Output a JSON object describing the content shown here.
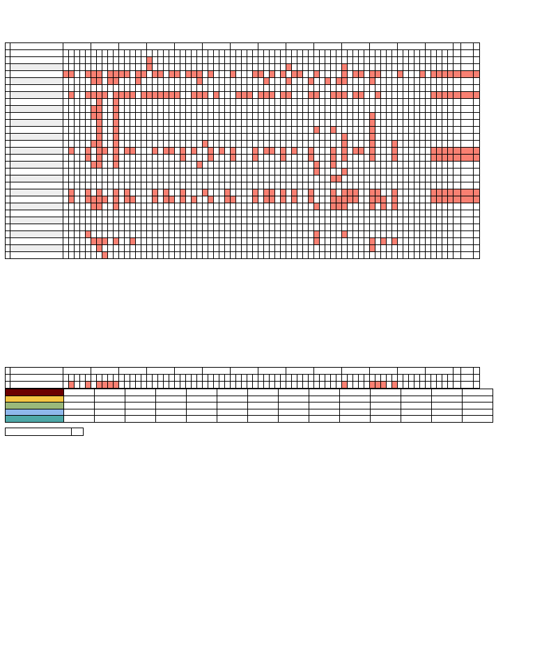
{
  "colors": {
    "mark": "#f98072",
    "row_shade": "#eeeeee",
    "legend": [
      "#6b0000",
      "#f5c542",
      "#9ab87a",
      "#8fb8ec",
      "#4ea8a8"
    ]
  },
  "main_table": {
    "columns": 69,
    "group_spans": [
      5,
      5,
      5,
      5,
      5,
      5,
      5,
      5,
      5,
      5,
      5,
      5,
      5,
      5
    ],
    "extra_columns": 3,
    "rows": [
      {
        "shade": false,
        "marks": [
          15
        ]
      },
      {
        "shade": true,
        "marks": [
          15,
          40,
          50
        ]
      },
      {
        "shade": false,
        "marks": [
          0,
          1,
          4,
          5,
          6,
          8,
          9,
          10,
          11,
          13,
          14,
          16,
          17,
          19,
          20,
          22,
          23,
          24,
          26,
          30,
          34,
          35,
          37,
          39,
          41,
          42,
          45,
          50,
          52,
          53,
          55,
          56,
          60,
          64,
          66,
          67,
          68,
          69,
          70
        ]
      },
      {
        "shade": true,
        "marks": [
          5,
          6,
          8,
          9,
          13,
          24,
          36,
          40,
          44,
          47,
          49,
          50,
          55
        ]
      },
      {
        "shade": false,
        "marks": []
      },
      {
        "shade": true,
        "marks": [
          1,
          4,
          5,
          6,
          7,
          9,
          10,
          11,
          12,
          14,
          15,
          16,
          17,
          18,
          19,
          20,
          23,
          24,
          25,
          27,
          31,
          32,
          33,
          35,
          36,
          37,
          39,
          40,
          44,
          45,
          48,
          49,
          50,
          52,
          53,
          56,
          66,
          67,
          68,
          69,
          70
        ]
      },
      {
        "shade": false,
        "marks": [
          6,
          9
        ]
      },
      {
        "shade": true,
        "marks": [
          5,
          6,
          9
        ]
      },
      {
        "shade": false,
        "marks": [
          5,
          6,
          9,
          55
        ]
      },
      {
        "shade": true,
        "marks": [
          6,
          9,
          55
        ]
      },
      {
        "shade": false,
        "marks": [
          6,
          9,
          45,
          48,
          55
        ]
      },
      {
        "shade": true,
        "marks": [
          6,
          9,
          50,
          55
        ]
      },
      {
        "shade": false,
        "marks": [
          5,
          6,
          9,
          25,
          50,
          55,
          59
        ]
      },
      {
        "shade": true,
        "marks": [
          1,
          4,
          6,
          7,
          9,
          11,
          12,
          16,
          18,
          19,
          21,
          23,
          26,
          28,
          30,
          34,
          36,
          37,
          39,
          41,
          44,
          48,
          50,
          52,
          53,
          55,
          59,
          66,
          67,
          68,
          69,
          70
        ]
      },
      {
        "shade": false,
        "marks": [
          4,
          6,
          9,
          21,
          26,
          30,
          34,
          39,
          44,
          48,
          50,
          55,
          59,
          66,
          67,
          68,
          69,
          70
        ]
      },
      {
        "shade": true,
        "marks": [
          5,
          6,
          9,
          24,
          45,
          48
        ]
      },
      {
        "shade": false,
        "marks": [
          45,
          50
        ]
      },
      {
        "shade": true,
        "marks": [
          48,
          49
        ]
      },
      {
        "shade": false,
        "marks": []
      },
      {
        "shade": true,
        "marks": [
          1,
          4,
          6,
          9,
          11,
          16,
          18,
          21,
          25,
          29,
          34,
          36,
          37,
          39,
          41,
          44,
          48,
          50,
          51,
          52,
          55,
          56,
          59,
          66,
          67,
          68,
          69,
          70
        ]
      },
      {
        "shade": false,
        "marks": [
          1,
          4,
          5,
          6,
          7,
          9,
          11,
          12,
          16,
          18,
          19,
          21,
          23,
          26,
          29,
          30,
          34,
          36,
          37,
          39,
          41,
          44,
          48,
          49,
          50,
          51,
          52,
          55,
          56,
          57,
          59,
          66,
          67,
          68,
          69,
          70
        ]
      },
      {
        "shade": true,
        "marks": [
          5,
          6,
          9,
          45,
          48,
          49,
          50,
          55,
          57,
          59
        ]
      },
      {
        "shade": false,
        "marks": []
      },
      {
        "shade": true,
        "marks": []
      },
      {
        "shade": false,
        "marks": []
      },
      {
        "shade": true,
        "marks": [
          4,
          45,
          50
        ]
      },
      {
        "shade": false,
        "marks": [
          5,
          6,
          7,
          9,
          12,
          45,
          55,
          57,
          59
        ]
      },
      {
        "shade": true,
        "marks": [
          6,
          55
        ]
      },
      {
        "shade": false,
        "marks": [
          7
        ]
      }
    ]
  },
  "summary_table": {
    "marks": [
      1,
      4,
      6,
      7,
      8,
      9,
      50,
      55,
      56,
      57,
      59
    ]
  },
  "legend": {
    "rows": 5,
    "cell_columns": 14
  }
}
